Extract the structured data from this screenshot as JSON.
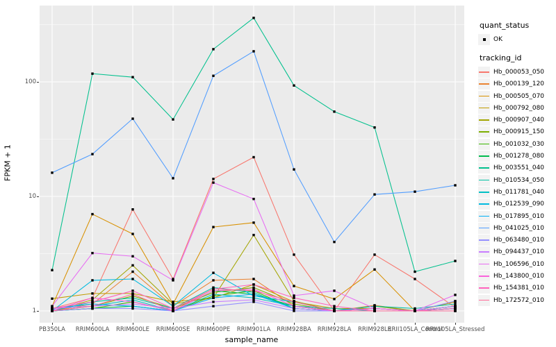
{
  "chart_data": {
    "type": "line",
    "xlabel": "sample_name",
    "ylabel": "FPKM + 1",
    "y_scale": "log10",
    "y_ticks": [
      1,
      10,
      100
    ],
    "y_tick_labels": [
      "1",
      "10",
      "100"
    ],
    "y_minor_ticks": [
      3.162,
      31.62,
      316.2
    ],
    "ylim_log": [
      -0.105,
      2.67
    ],
    "grid": "white-on-grey",
    "legend_position": "right",
    "categories": [
      "PB350LA",
      "RRIM600LA",
      "RRIM600LE",
      "RRIM600SE",
      "RRIM600PE",
      "RRIM901LA",
      "RRIM928BA",
      "RRIM928LA",
      "RRIM928LE",
      "RRII105LA_Control",
      "RRII105LA_Stressed"
    ],
    "series": [
      {
        "name": "Hb_000053_050",
        "color": "#F8766D",
        "values": [
          1.05,
          1.3,
          7.7,
          1.9,
          14.2,
          22,
          3.1,
          1.0,
          3.1,
          1.9,
          1.07
        ]
      },
      {
        "name": "Hb_000139_120",
        "color": "#EA8331",
        "values": [
          1.0,
          1.15,
          2.2,
          1.1,
          1.85,
          1.9,
          1.1,
          1.0,
          1.12,
          1.0,
          1.1
        ]
      },
      {
        "name": "Hb_000505_070",
        "color": "#D89000",
        "values": [
          1.1,
          7.0,
          4.7,
          1.15,
          5.4,
          5.9,
          1.65,
          1.27,
          2.3,
          1.0,
          1.1
        ]
      },
      {
        "name": "Hb_000792_080",
        "color": "#C09B00",
        "values": [
          1.28,
          1.42,
          1.42,
          1.2,
          1.3,
          1.7,
          1.2,
          1.05,
          1.05,
          1.0,
          1.2
        ]
      },
      {
        "name": "Hb_000907_040",
        "color": "#A3A500",
        "values": [
          1.0,
          1.25,
          2.5,
          1.15,
          1.3,
          4.6,
          1.22,
          1.0,
          1.05,
          1.0,
          1.05
        ]
      },
      {
        "name": "Hb_000915_150",
        "color": "#7CAE00",
        "values": [
          1.0,
          1.1,
          1.35,
          1.05,
          1.45,
          1.6,
          1.15,
          1.0,
          1.1,
          1.0,
          1.1
        ]
      },
      {
        "name": "Hb_001032_030",
        "color": "#39B600",
        "values": [
          1.0,
          1.05,
          1.2,
          1.0,
          1.35,
          1.5,
          1.05,
          1.0,
          1.0,
          1.0,
          1.05
        ]
      },
      {
        "name": "Hb_001278_080",
        "color": "#00BB4E",
        "values": [
          1.0,
          1.05,
          1.1,
          1.0,
          1.5,
          1.4,
          1.1,
          1.0,
          1.05,
          1.0,
          1.0
        ]
      },
      {
        "name": "Hb_003551_040",
        "color": "#00C08D",
        "values": [
          2.27,
          118,
          110,
          47,
          193,
          362,
          93,
          55,
          40,
          2.2,
          2.73
        ]
      },
      {
        "name": "Hb_010534_050",
        "color": "#00C1A3",
        "values": [
          1.0,
          1.2,
          1.3,
          1.05,
          1.6,
          1.45,
          1.05,
          1.0,
          1.1,
          1.05,
          1.15
        ]
      },
      {
        "name": "Hb_011781_040",
        "color": "#00BFC4",
        "values": [
          1.05,
          1.1,
          1.25,
          1.0,
          1.4,
          1.3,
          1.1,
          1.05,
          1.0,
          1.0,
          1.1
        ]
      },
      {
        "name": "Hb_012539_090",
        "color": "#00BAE0",
        "values": [
          1.0,
          1.85,
          1.9,
          1.1,
          2.15,
          1.35,
          1.2,
          1.0,
          1.05,
          1.0,
          1.05
        ]
      },
      {
        "name": "Hb_017895_010",
        "color": "#00B0F6",
        "values": [
          1.05,
          1.15,
          1.1,
          1.0,
          1.3,
          1.4,
          1.05,
          1.0,
          1.0,
          1.0,
          1.05
        ]
      },
      {
        "name": "Hb_041025_010",
        "color": "#519DFF",
        "values": [
          16.1,
          23.4,
          47.7,
          14.4,
          113,
          185,
          17.2,
          4.0,
          10.4,
          11.0,
          12.5
        ]
      },
      {
        "name": "Hb_063480_010",
        "color": "#9590FF",
        "values": [
          1.0,
          1.05,
          1.05,
          1.0,
          1.1,
          1.2,
          1.0,
          1.0,
          1.0,
          1.0,
          1.22
        ]
      },
      {
        "name": "Hb_094437_010",
        "color": "#C77CFF",
        "values": [
          1.05,
          1.1,
          1.15,
          1.05,
          1.2,
          1.25,
          1.05,
          1.0,
          1.05,
          1.0,
          1.1
        ]
      },
      {
        "name": "Hb_106596_010",
        "color": "#E76BF3",
        "values": [
          1.1,
          3.2,
          3.0,
          1.85,
          13.2,
          9.5,
          1.36,
          1.5,
          1.05,
          1.0,
          1.38
        ]
      },
      {
        "name": "Hb_143800_010",
        "color": "#FA62DB",
        "values": [
          1.0,
          1.3,
          1.2,
          1.0,
          1.5,
          1.55,
          1.1,
          1.0,
          1.05,
          1.0,
          1.0
        ]
      },
      {
        "name": "Hb_154381_010",
        "color": "#FF62BC",
        "values": [
          1.05,
          1.2,
          1.5,
          1.05,
          1.55,
          1.7,
          1.3,
          1.1,
          1.0,
          1.0,
          1.05
        ]
      },
      {
        "name": "Hb_172572_010",
        "color": "#FF6A98",
        "values": [
          1.0,
          1.1,
          1.4,
          1.0,
          1.56,
          1.5,
          1.2,
          1.0,
          1.0,
          1.0,
          1.0
        ]
      }
    ]
  },
  "legend": {
    "quant_title": "quant_status",
    "quant_items": [
      {
        "label": "OK",
        "marker": "black-point"
      }
    ],
    "tracking_title": "tracking_id"
  },
  "colors": {
    "panel_bg": "#EBEBEB",
    "grid": "#FFFFFF",
    "axis_text": "#4D4D4D",
    "tick_mark": "#333333",
    "point": "#000000",
    "legend_key_bg": "#F2F2F2"
  }
}
